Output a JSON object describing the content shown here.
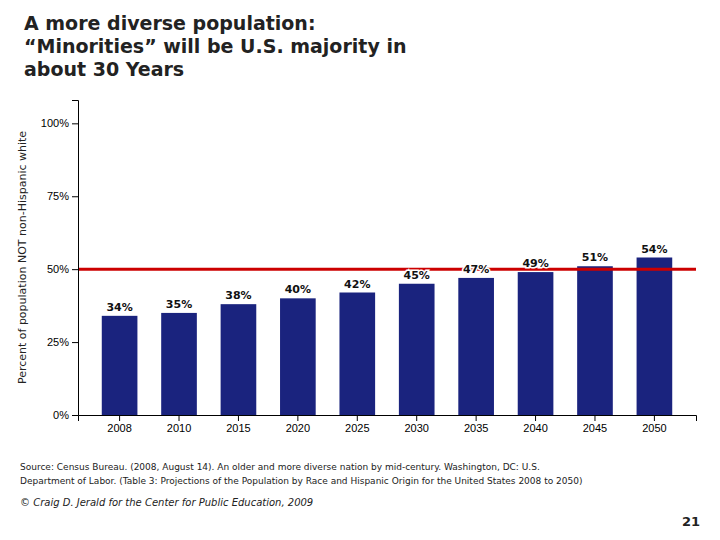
{
  "chart_data": {
    "type": "bar",
    "title": "A more diverse population:\n“Minorities” will be U.S. majority in\nabout 30 Years",
    "y_label": "Percent of population NOT non-Hispanic white",
    "categories": [
      "2008",
      "2010",
      "2015",
      "2020",
      "2025",
      "2030",
      "2035",
      "2040",
      "2045",
      "2050"
    ],
    "values": [
      34,
      35,
      38,
      40,
      42,
      45,
      47,
      49,
      51,
      54
    ],
    "value_labels": [
      "34%",
      "35%",
      "38%",
      "40%",
      "42%",
      "45%",
      "47%",
      "49%",
      "51%",
      "54%"
    ],
    "color": "#1a237e",
    "ylim": [
      0,
      108
    ],
    "yticks": [
      {
        "value": 0,
        "label": "0%"
      },
      {
        "value": 25,
        "label": "25%"
      },
      {
        "value": 50,
        "label": "50%"
      },
      {
        "value": 75,
        "label": "75%"
      },
      {
        "value": 100,
        "label": "100%"
      }
    ],
    "reference_line": {
      "value": 50,
      "color": "#cc0000"
    },
    "grid": false,
    "data_labels": true,
    "annotations": [
      "Source: Census Bureau. (2008, August 14). An older and more diverse nation by mid-century. Washington, DC: U.S.",
      "Department of Labor. (Table 3: Projections of the Population by Race and Hispanic Origin for the United States 2008 to 2050)",
      "© Craig D. Jerald for the Center for Public Education, 2009",
      "21"
    ]
  }
}
